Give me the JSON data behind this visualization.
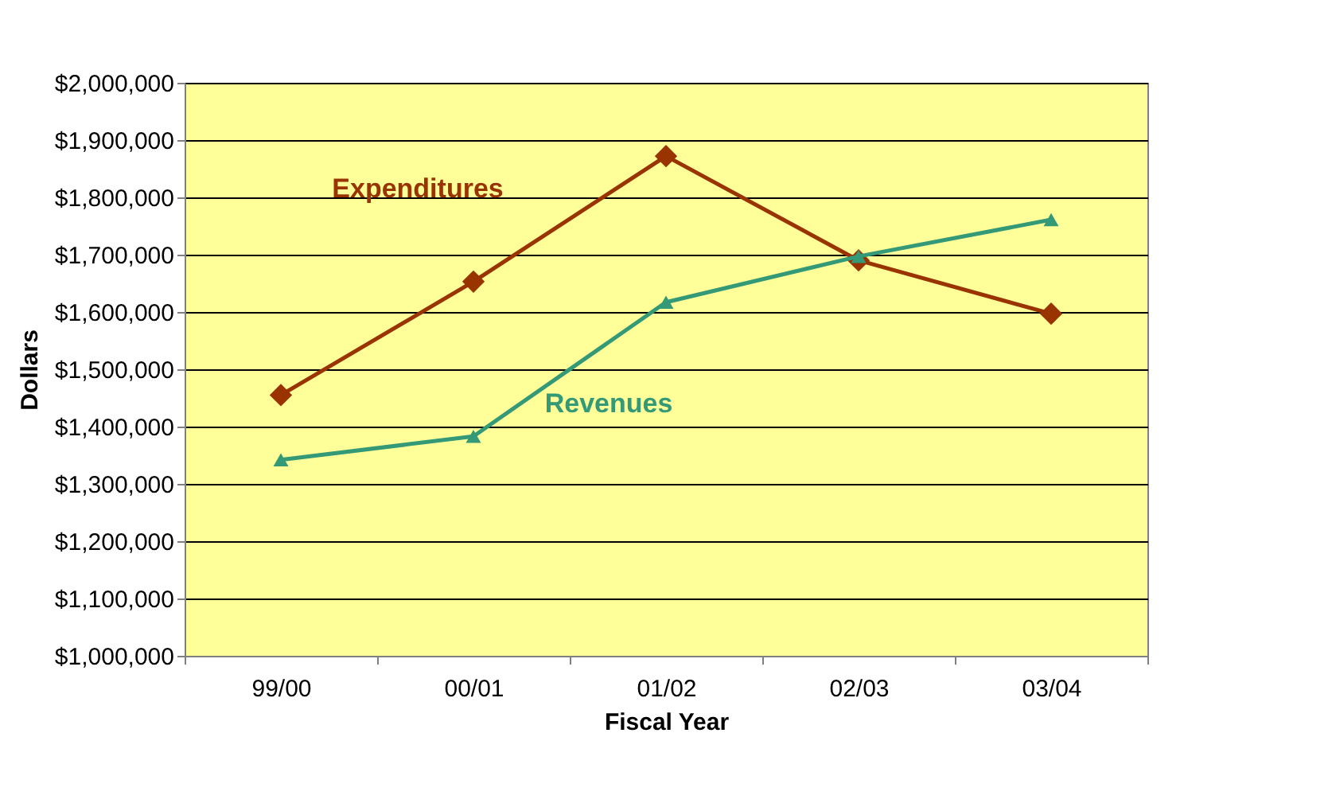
{
  "chart_data": {
    "type": "line",
    "xlabel": "Fiscal Year",
    "ylabel": "Dollars",
    "categories": [
      "99/00",
      "00/01",
      "01/02",
      "02/03",
      "03/04"
    ],
    "series": [
      {
        "name": "Expenditures",
        "color": "#993300",
        "marker": "diamond",
        "values": [
          1455000,
          1653000,
          1872000,
          1690000,
          1597000
        ]
      },
      {
        "name": "Revenues",
        "color": "#339977",
        "marker": "triangle",
        "values": [
          1342000,
          1383000,
          1617000,
          1697000,
          1761000
        ]
      }
    ],
    "ylim": [
      1000000,
      2000000
    ],
    "yticks": [
      {
        "value": 1000000,
        "label": "$1,000,000"
      },
      {
        "value": 1100000,
        "label": "$1,100,000"
      },
      {
        "value": 1200000,
        "label": "$1,200,000"
      },
      {
        "value": 1300000,
        "label": "$1,300,000"
      },
      {
        "value": 1400000,
        "label": "$1,400,000"
      },
      {
        "value": 1500000,
        "label": "$1,500,000"
      },
      {
        "value": 1600000,
        "label": "$1,600,000"
      },
      {
        "value": 1700000,
        "label": "$1,700,000"
      },
      {
        "value": 1800000,
        "label": "$1,800,000"
      },
      {
        "value": 1900000,
        "label": "$1,900,000"
      },
      {
        "value": 2000000,
        "label": "$2,000,000"
      }
    ],
    "grid": "y"
  }
}
